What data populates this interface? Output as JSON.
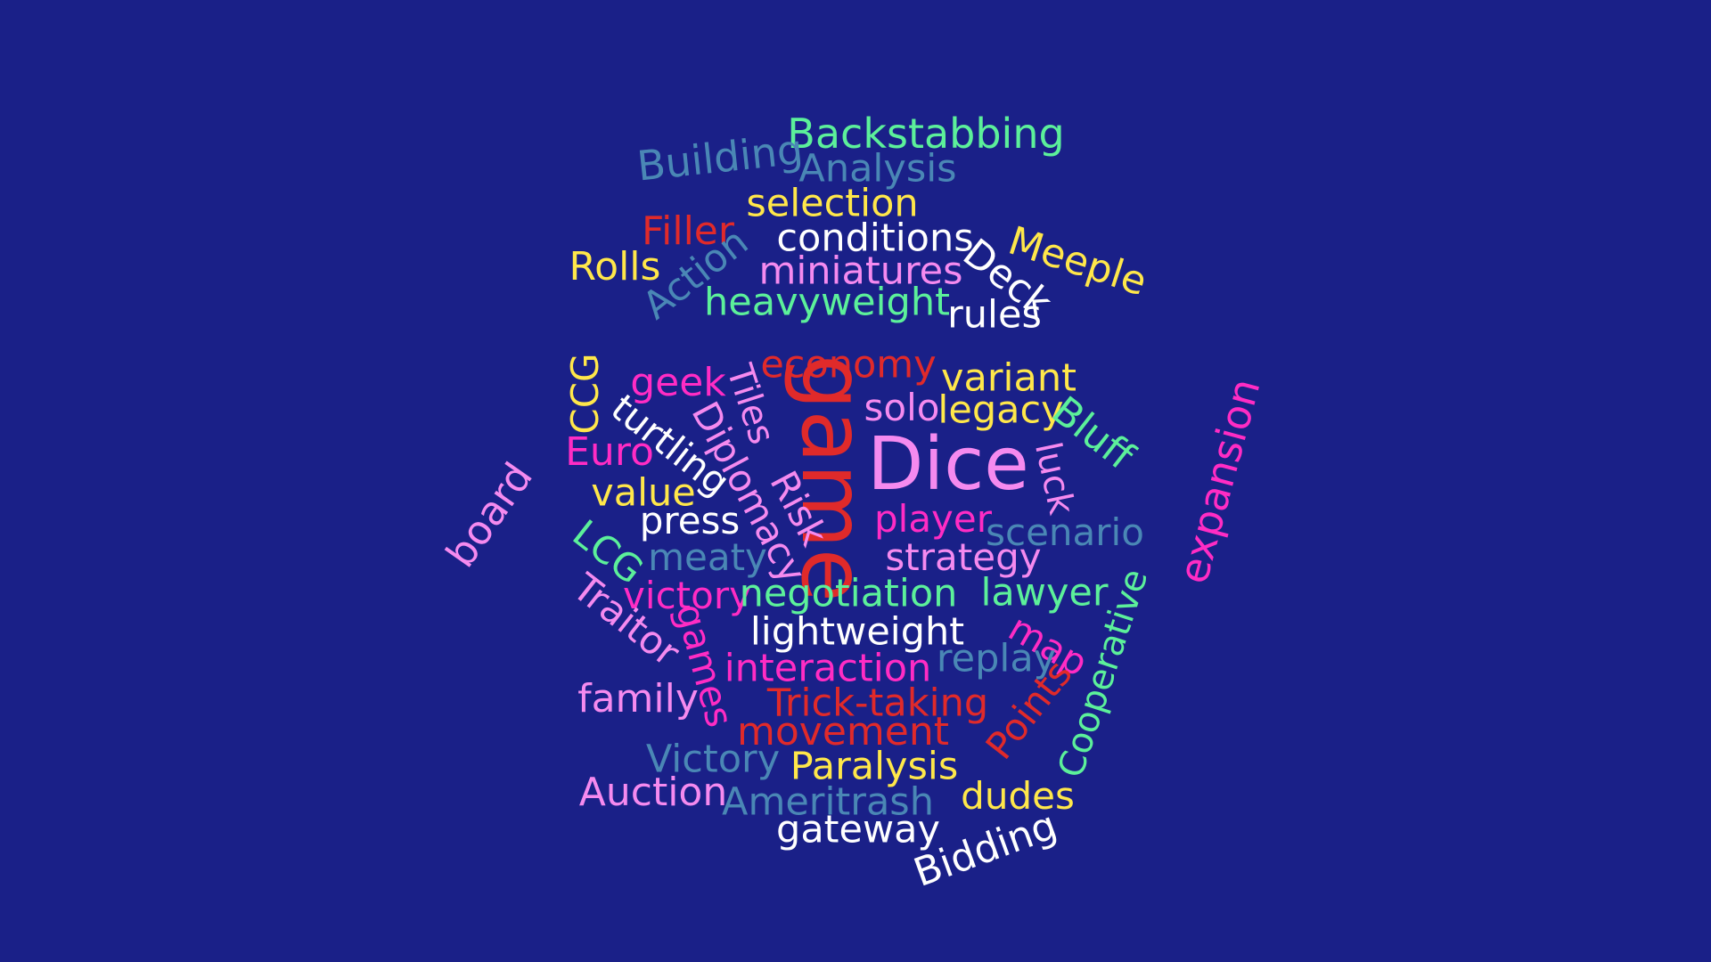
{
  "background": "#1a2088",
  "palette": {
    "mint": "#5cf09a",
    "steel": "#4a87b5",
    "yellow": "#ffe74a",
    "red": "#e02a2a",
    "white": "#ffffff",
    "pink": "#f58aef",
    "magenta": "#ff2cc4"
  },
  "words": [
    {
      "text": "Backstabbing",
      "color": "#5cf09a"
    },
    {
      "text": "Building",
      "color": "#4a87b5"
    },
    {
      "text": "Analysis",
      "color": "#4a87b5"
    },
    {
      "text": "selection",
      "color": "#ffe74a"
    },
    {
      "text": "Filler",
      "color": "#e02a2a"
    },
    {
      "text": "conditions",
      "color": "#ffffff"
    },
    {
      "text": "Meeple",
      "color": "#ffe74a"
    },
    {
      "text": "Rolls",
      "color": "#ffe74a"
    },
    {
      "text": "Action",
      "color": "#4a87b5"
    },
    {
      "text": "miniatures",
      "color": "#f58aef"
    },
    {
      "text": "Deck",
      "color": "#ffffff"
    },
    {
      "text": "heavyweight",
      "color": "#5cf09a"
    },
    {
      "text": "rules",
      "color": "#ffffff"
    },
    {
      "text": "CCG",
      "color": "#ffe74a"
    },
    {
      "text": "geek",
      "color": "#ff2cc4"
    },
    {
      "text": "Tiles",
      "color": "#f58aef"
    },
    {
      "text": "economy",
      "color": "#e02a2a"
    },
    {
      "text": "game",
      "color": "#e02a2a"
    },
    {
      "text": "variant",
      "color": "#ffe74a"
    },
    {
      "text": "solo",
      "color": "#f58aef"
    },
    {
      "text": "legacy",
      "color": "#ffe74a"
    },
    {
      "text": "Bluff",
      "color": "#5cf09a"
    },
    {
      "text": "luck",
      "color": "#f58aef"
    },
    {
      "text": "expansion",
      "color": "#ff2cc4"
    },
    {
      "text": "turtling",
      "color": "#ffffff"
    },
    {
      "text": "Diplomacy",
      "color": "#f58aef"
    },
    {
      "text": "Euro",
      "color": "#ff2cc4"
    },
    {
      "text": "Dice",
      "color": "#f58aef"
    },
    {
      "text": "board",
      "color": "#f58aef"
    },
    {
      "text": "value",
      "color": "#ffe74a"
    },
    {
      "text": "Risk",
      "color": "#f58aef"
    },
    {
      "text": "press",
      "color": "#ffffff"
    },
    {
      "text": "player",
      "color": "#ff2cc4"
    },
    {
      "text": "scenario",
      "color": "#4a87b5"
    },
    {
      "text": "LCG",
      "color": "#5cf09a"
    },
    {
      "text": "meaty",
      "color": "#4a87b5"
    },
    {
      "text": "strategy",
      "color": "#f58aef"
    },
    {
      "text": "victory",
      "color": "#ff2cc4"
    },
    {
      "text": "negotiation",
      "color": "#5cf09a"
    },
    {
      "text": "lawyer",
      "color": "#5cf09a"
    },
    {
      "text": "Traitor",
      "color": "#f58aef"
    },
    {
      "text": "games",
      "color": "#ff2cc4"
    },
    {
      "text": "lightweight",
      "color": "#ffffff"
    },
    {
      "text": "map",
      "color": "#ff2cc4"
    },
    {
      "text": "Cooperative",
      "color": "#5cf09a"
    },
    {
      "text": "replay",
      "color": "#4a87b5"
    },
    {
      "text": "interaction",
      "color": "#ff2cc4"
    },
    {
      "text": "family",
      "color": "#f58aef"
    },
    {
      "text": "Trick-taking",
      "color": "#e02a2a"
    },
    {
      "text": "Points",
      "color": "#e02a2a"
    },
    {
      "text": "movement",
      "color": "#e02a2a"
    },
    {
      "text": "Victory",
      "color": "#4a87b5"
    },
    {
      "text": "Paralysis",
      "color": "#ffe74a"
    },
    {
      "text": "Auction",
      "color": "#f58aef"
    },
    {
      "text": "dudes",
      "color": "#ffe74a"
    },
    {
      "text": "Ameritrash",
      "color": "#4a87b5"
    },
    {
      "text": "gateway",
      "color": "#ffffff"
    },
    {
      "text": "Bidding",
      "color": "#ffffff"
    }
  ]
}
